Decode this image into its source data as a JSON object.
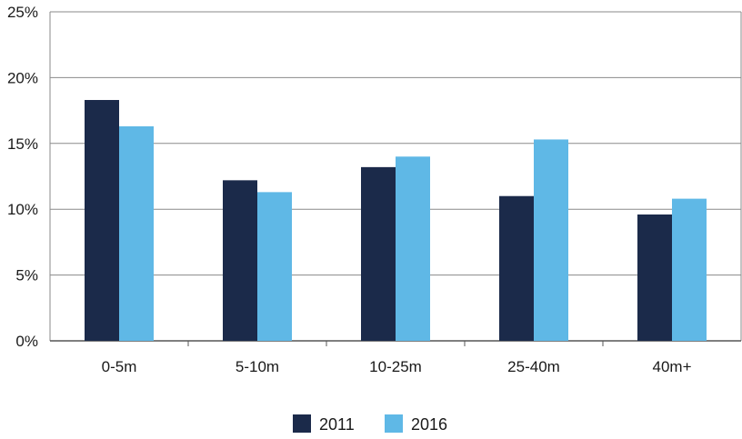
{
  "chart_data": {
    "type": "bar",
    "categories": [
      "0-5m",
      "5-10m",
      "10-25m",
      "25-40m",
      "40m+"
    ],
    "series": [
      {
        "name": "2011",
        "values": [
          18.3,
          12.2,
          13.2,
          11.0,
          9.6
        ],
        "color": "#1b2a4a"
      },
      {
        "name": "2016",
        "values": [
          16.3,
          11.3,
          14.0,
          15.3,
          10.8
        ],
        "color": "#5fb8e6"
      }
    ],
    "yticks": [
      "0%",
      "5%",
      "10%",
      "15%",
      "20%",
      "25%"
    ],
    "ylim": [
      0,
      25
    ],
    "title": "",
    "xlabel": "",
    "ylabel": "",
    "grid": true,
    "legend_position": "bottom-center"
  }
}
